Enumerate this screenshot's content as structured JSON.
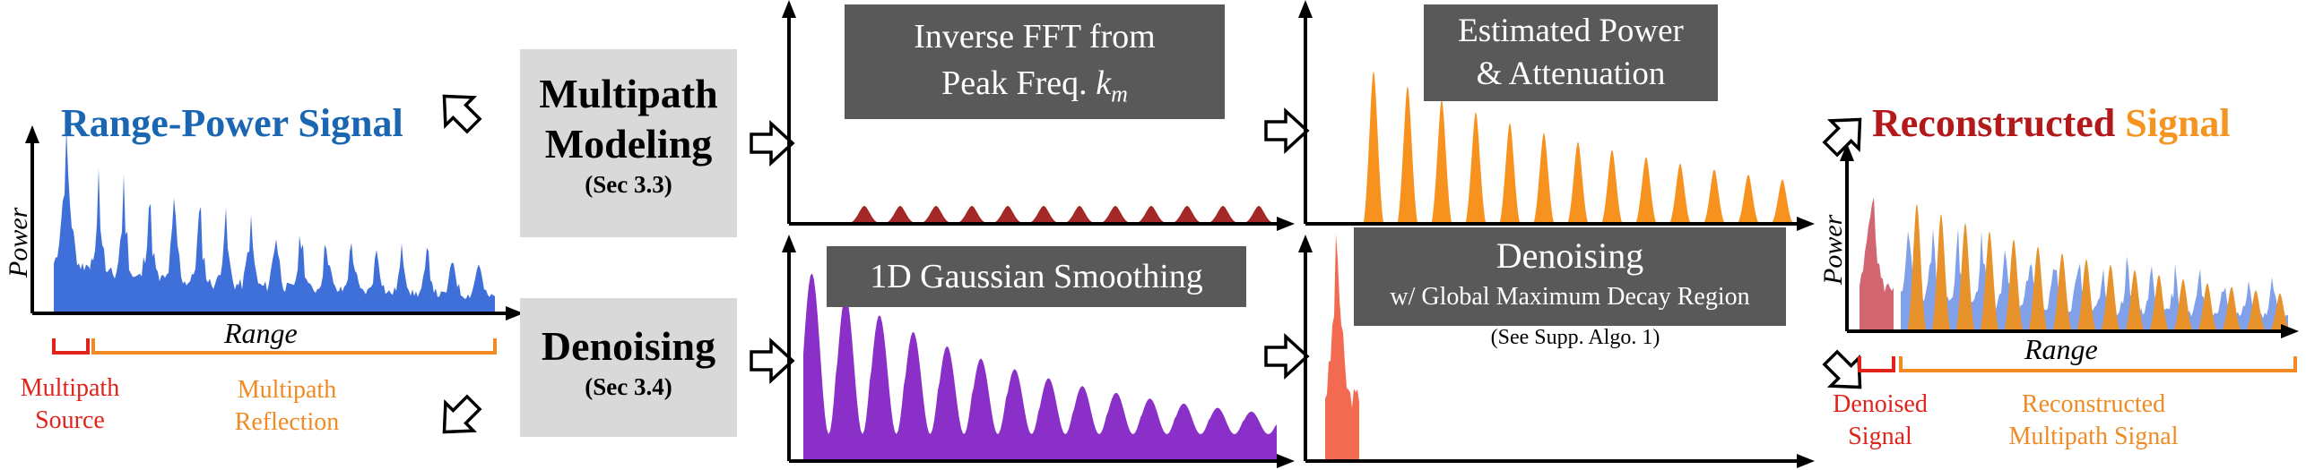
{
  "left_panel": {
    "title": "Range-Power Signal",
    "y_axis": "Power",
    "x_axis": "Range",
    "source_label_1": "Multipath",
    "source_label_2": "Source",
    "reflection_label_1": "Multipath",
    "reflection_label_2": "Reflection"
  },
  "modeling_box": {
    "line1": "Multipath",
    "line2": "Modeling",
    "ref": "(Sec 3.3)"
  },
  "denoising_box": {
    "line1": "Denoising",
    "ref": "(Sec 3.4)"
  },
  "ifft_panel": {
    "line1": "Inverse FFT from",
    "line2": "Peak Freq. ",
    "symbol": "k",
    "subscript": "m"
  },
  "gauss_panel": {
    "label": "1D Gaussian Smoothing"
  },
  "power_panel": {
    "line1": "Estimated Power",
    "line2": "& Attenuation"
  },
  "denoise_panel": {
    "line1": "Denoising",
    "line2": "w/ Global Maximum Decay Region",
    "note": "(See Supp. Algo. 1)"
  },
  "right_panel": {
    "title_word1": "Reconstructed",
    "title_word2": "Signal",
    "y_axis": "Power",
    "x_axis": "Range",
    "denoised_label_1": "Denoised",
    "denoised_label_2": "Signal",
    "recon_label_1": "Reconstructed",
    "recon_label_2": "Multipath Signal"
  },
  "colors": {
    "raw_signal": "#3f6fd8",
    "title_blue": "#1a66b3",
    "multipath_source": "#e0241b",
    "multipath_reflection": "#f08a24",
    "ifft_peaks": "#a52828",
    "gaussian": "#8a30c8",
    "power_peaks": "#f7921e",
    "denoised": "#f26a4f",
    "recon_blue": "#6a8fe6",
    "recon_red": "#cc5560",
    "recon_orange": "#e8922c",
    "box_gray": "#d9d9d9",
    "box_dark": "#595959"
  },
  "icons": [
    "hollow-arrow-icon"
  ]
}
